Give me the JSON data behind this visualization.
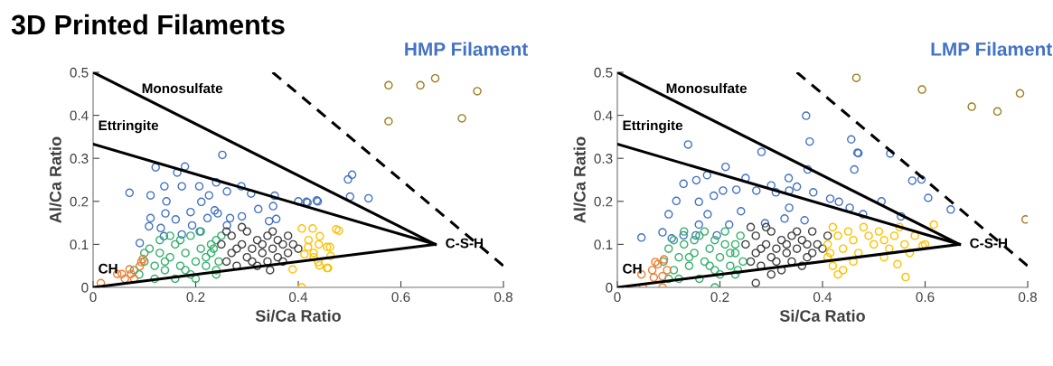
{
  "chart_data": [
    {
      "type": "scatter",
      "title": "HMP Filament",
      "xlabel": "Si/Ca Ratio",
      "ylabel": "Al/Ca Ratio",
      "xlim": [
        0,
        0.8
      ],
      "ylim": [
        0,
        0.5
      ],
      "xticks": [
        0,
        0.2,
        0.4,
        0.6,
        0.8
      ],
      "yticks": [
        0,
        0.1,
        0.2,
        0.3,
        0.4,
        0.5
      ],
      "grid": false,
      "legend": false,
      "marker": "circle",
      "annotations": [
        "3D Printed Filaments",
        {
          "text": "Monosulfate",
          "x": 0.075,
          "y": 0.46
        },
        {
          "text": "Ettringite",
          "x": 0.0,
          "y": 0.333
        },
        {
          "text": "CH",
          "x": 0.0,
          "y": 0.0
        },
        {
          "text": "C-S-H",
          "x": 0.667,
          "y": 0.1
        }
      ],
      "series": [
        {
          "type": "line",
          "marker": "none",
          "color": "#000000",
          "line_style": "solid",
          "x": [
            0,
            0.667
          ],
          "values": [
            0.5,
            0.1
          ]
        },
        {
          "type": "line",
          "marker": "none",
          "color": "#000000",
          "line_style": "solid",
          "x": [
            0,
            0.667
          ],
          "values": [
            0.333,
            0.1
          ]
        },
        {
          "type": "line",
          "marker": "none",
          "color": "#000000",
          "line_style": "solid",
          "x": [
            0,
            0.667
          ],
          "values": [
            0,
            0.1
          ]
        },
        {
          "type": "line",
          "marker": "none",
          "color": "#000000",
          "line_style": "dashed",
          "x": [
            0.35,
            0.8
          ],
          "values": [
            0.5,
            0.05
          ]
        },
        {
          "color": "#4472c4",
          "x": [
            0.252,
            0.122,
            0.179,
            0.071,
            0.112,
            0.139,
            0.173,
            0.207,
            0.164,
            0.24,
            0.289,
            0.261,
            0.308,
            0.354,
            0.4,
            0.416,
            0.436,
            0.143,
            0.211,
            0.226,
            0.19,
            0.141,
            0.112,
            0.109,
            0.132,
            0.161,
            0.223,
            0.237,
            0.267,
            0.29,
            0.322,
            0.351,
            0.343,
            0.357,
            0.261,
            0.173,
            0.208,
            0.138,
            0.091,
            0.193,
            0.243,
            0.505,
            0.497,
            0.501,
            0.537,
            0.438,
            0.418
          ],
          "values": [
            0.308,
            0.279,
            0.281,
            0.22,
            0.214,
            0.235,
            0.235,
            0.235,
            0.267,
            0.244,
            0.235,
            0.223,
            0.218,
            0.213,
            0.2,
            0.199,
            0.202,
            0.2,
            0.199,
            0.214,
            0.175,
            0.172,
            0.161,
            0.142,
            0.138,
            0.158,
            0.161,
            0.179,
            0.161,
            0.165,
            0.182,
            0.189,
            0.154,
            0.159,
            0.144,
            0.123,
            0.13,
            0.119,
            0.103,
            0.144,
            0.172,
            0.262,
            0.251,
            0.211,
            0.207,
            0.2,
            0.197
          ]
        },
        {
          "color": "#33b06b",
          "x": [
            0.09,
            0.1,
            0.12,
            0.13,
            0.14,
            0.15,
            0.16,
            0.17,
            0.18,
            0.19,
            0.2,
            0.21,
            0.22,
            0.23,
            0.24,
            0.245,
            0.25,
            0.11,
            0.13,
            0.15,
            0.17,
            0.19,
            0.21,
            0.23,
            0.12,
            0.16,
            0.2,
            0.24,
            0.14,
            0.18,
            0.22,
            0.235,
            0.24,
            0.08,
            0.1
          ],
          "values": [
            0.03,
            0.06,
            0.05,
            0.08,
            0.04,
            0.07,
            0.1,
            0.05,
            0.08,
            0.03,
            0.06,
            0.09,
            0.05,
            0.08,
            0.11,
            0.06,
            0.12,
            0.09,
            0.11,
            0.12,
            0.11,
            0.12,
            0.13,
            0.1,
            0.02,
            0.02,
            0.02,
            0.03,
            0.06,
            0.04,
            0.07,
            0.09,
            0.04,
            0.04,
            0.08
          ]
        },
        {
          "color": "#404040",
          "x": [
            0.25,
            0.26,
            0.27,
            0.27,
            0.28,
            0.29,
            0.3,
            0.3,
            0.31,
            0.32,
            0.32,
            0.33,
            0.34,
            0.34,
            0.35,
            0.36,
            0.36,
            0.37,
            0.38,
            0.38,
            0.39,
            0.26,
            0.28,
            0.29,
            0.31,
            0.33,
            0.35,
            0.37,
            0.4,
            0.345
          ],
          "values": [
            0.1,
            0.06,
            0.12,
            0.08,
            0.05,
            0.1,
            0.07,
            0.13,
            0.09,
            0.05,
            0.11,
            0.08,
            0.12,
            0.06,
            0.09,
            0.07,
            0.11,
            0.1,
            0.08,
            0.12,
            0.1,
            0.13,
            0.09,
            0.14,
            0.06,
            0.1,
            0.13,
            0.06,
            0.09,
            0.04
          ]
        },
        {
          "color": "#ffc000",
          "x": [
            0.407,
            0.389,
            0.407,
            0.428,
            0.474,
            0.442,
            0.419,
            0.43,
            0.456,
            0.456,
            0.439,
            0.412,
            0.463,
            0.479,
            0.462,
            0.458,
            0.441,
            0.42,
            0.44,
            0.43
          ],
          "values": [
            0.0,
            0.042,
            0.137,
            0.137,
            0.135,
            0.119,
            0.094,
            0.08,
            0.094,
            0.045,
            0.059,
            0.077,
            0.073,
            0.132,
            0.094,
            0.045,
            0.051,
            0.11,
            0.1,
            0.07
          ]
        },
        {
          "color": "#ed7d31",
          "x": [
            0.015,
            0.056,
            0.071,
            0.094,
            0.091,
            0.08,
            0.062,
            0.047,
            0.074,
            0.097
          ],
          "values": [
            0.01,
            0.031,
            0.042,
            0.059,
            0.049,
            0.02,
            0.02,
            0.031,
            0.031,
            0.066
          ]
        },
        {
          "color": "#9c7e1c",
          "x": [
            0.576,
            0.638,
            0.667,
            0.749,
            0.576,
            0.719
          ],
          "values": [
            0.47,
            0.47,
            0.486,
            0.456,
            0.386,
            0.393
          ]
        }
      ]
    },
    {
      "type": "scatter",
      "title": "LMP Filament",
      "xlabel": "Si/Ca Ratio",
      "ylabel": "Al/Ca Ratio",
      "xlim": [
        0,
        0.8
      ],
      "ylim": [
        0,
        0.5
      ],
      "xticks": [
        0,
        0.2,
        0.4,
        0.6,
        0.8
      ],
      "yticks": [
        0,
        0.1,
        0.2,
        0.3,
        0.4,
        0.5
      ],
      "grid": false,
      "legend": false,
      "marker": "circle",
      "annotations": [
        {
          "text": "Monosulfate",
          "x": 0.075,
          "y": 0.46
        },
        {
          "text": "Ettringite",
          "x": 0.0,
          "y": 0.333
        },
        {
          "text": "CH",
          "x": 0.0,
          "y": 0.0
        },
        {
          "text": "C-S-H",
          "x": 0.667,
          "y": 0.1
        }
      ],
      "series": [
        {
          "type": "line",
          "marker": "none",
          "color": "#000000",
          "line_style": "solid",
          "x": [
            0,
            0.667
          ],
          "values": [
            0.5,
            0.1
          ]
        },
        {
          "type": "line",
          "marker": "none",
          "color": "#000000",
          "line_style": "solid",
          "x": [
            0,
            0.667
          ],
          "values": [
            0.333,
            0.1
          ]
        },
        {
          "type": "line",
          "marker": "none",
          "color": "#000000",
          "line_style": "solid",
          "x": [
            0,
            0.667
          ],
          "values": [
            0,
            0.1
          ]
        },
        {
          "type": "line",
          "marker": "none",
          "color": "#000000",
          "line_style": "dashed",
          "x": [
            0.35,
            0.8
          ],
          "values": [
            0.5,
            0.05
          ]
        },
        {
          "color": "#4472c4",
          "x": [
            0.368,
            0.375,
            0.138,
            0.281,
            0.211,
            0.175,
            0.154,
            0.129,
            0.25,
            0.334,
            0.35,
            0.3,
            0.371,
            0.456,
            0.468,
            0.462,
            0.206,
            0.188,
            0.159,
            0.115,
            0.232,
            0.271,
            0.309,
            0.335,
            0.382,
            0.415,
            0.432,
            0.453,
            0.479,
            0.1,
            0.047,
            0.088,
            0.106,
            0.129,
            0.159,
            0.176,
            0.218,
            0.241,
            0.288,
            0.326,
            0.335,
            0.365,
            0.153,
            0.194,
            0.47,
            0.532,
            0.575,
            0.593,
            0.606,
            0.65,
            0.515,
            0.553
          ],
          "values": [
            0.399,
            0.339,
            0.332,
            0.315,
            0.28,
            0.261,
            0.249,
            0.241,
            0.254,
            0.254,
            0.234,
            0.237,
            0.274,
            0.344,
            0.313,
            0.274,
            0.225,
            0.213,
            0.199,
            0.201,
            0.227,
            0.225,
            0.221,
            0.225,
            0.221,
            0.206,
            0.199,
            0.185,
            0.17,
            0.17,
            0.116,
            0.128,
            0.114,
            0.121,
            0.146,
            0.17,
            0.146,
            0.177,
            0.149,
            0.16,
            0.185,
            0.156,
            0.121,
            0.121,
            0.312,
            0.311,
            0.248,
            0.251,
            0.208,
            0.181,
            0.2,
            0.165
          ]
        },
        {
          "color": "#33b06b",
          "x": [
            0.09,
            0.1,
            0.11,
            0.12,
            0.13,
            0.14,
            0.15,
            0.16,
            0.17,
            0.18,
            0.19,
            0.2,
            0.21,
            0.22,
            0.23,
            0.24,
            0.245,
            0.11,
            0.13,
            0.15,
            0.17,
            0.19,
            0.21,
            0.23,
            0.12,
            0.16,
            0.2,
            0.23,
            0.14,
            0.18,
            0.22,
            0.235,
            0.1,
            0.19
          ],
          "values": [
            0.06,
            0.09,
            0.04,
            0.07,
            0.1,
            0.05,
            0.08,
            0.12,
            0.06,
            0.09,
            0.04,
            0.07,
            0.1,
            0.05,
            0.08,
            0.12,
            0.06,
            0.11,
            0.13,
            0.11,
            0.13,
            0.11,
            0.13,
            0.1,
            0.02,
            0.02,
            0.03,
            0.03,
            0.07,
            0.05,
            0.08,
            0.04,
            0.02,
            0.0
          ]
        },
        {
          "color": "#404040",
          "x": [
            0.25,
            0.26,
            0.27,
            0.27,
            0.28,
            0.29,
            0.3,
            0.3,
            0.31,
            0.32,
            0.32,
            0.33,
            0.34,
            0.34,
            0.35,
            0.36,
            0.36,
            0.37,
            0.38,
            0.38,
            0.39,
            0.26,
            0.28,
            0.29,
            0.31,
            0.33,
            0.35,
            0.37,
            0.4,
            0.41,
            0.3,
            0.27
          ],
          "values": [
            0.1,
            0.06,
            0.12,
            0.08,
            0.05,
            0.1,
            0.07,
            0.13,
            0.09,
            0.04,
            0.11,
            0.08,
            0.12,
            0.06,
            0.09,
            0.05,
            0.11,
            0.1,
            0.08,
            0.13,
            0.1,
            0.14,
            0.09,
            0.14,
            0.06,
            0.1,
            0.13,
            0.07,
            0.09,
            0.12,
            0.03,
            0.01
          ]
        },
        {
          "color": "#ffc000",
          "x": [
            0.41,
            0.41,
            0.42,
            0.43,
            0.44,
            0.45,
            0.46,
            0.47,
            0.48,
            0.49,
            0.5,
            0.51,
            0.52,
            0.53,
            0.54,
            0.55,
            0.56,
            0.57,
            0.58,
            0.6,
            0.617,
            0.42,
            0.43,
            0.44,
            0.46,
            0.546,
            0.562,
            0.595,
            0.52,
            0.415
          ],
          "values": [
            0.07,
            0.1,
            0.14,
            0.12,
            0.09,
            0.13,
            0.11,
            0.08,
            0.14,
            0.12,
            0.1,
            0.13,
            0.11,
            0.09,
            0.12,
            0.14,
            0.1,
            0.08,
            0.12,
            0.1,
            0.146,
            0.05,
            0.03,
            0.04,
            0.06,
            0.054,
            0.024,
            0.097,
            0.07,
            0.08
          ]
        },
        {
          "color": "#ed7d31",
          "x": [
            0.05,
            0.088,
            0.071,
            0.088,
            0.068,
            0.079,
            0.091,
            0.074,
            0.047,
            0.097
          ],
          "values": [
            0.0,
            0.0,
            0.023,
            0.026,
            0.04,
            0.054,
            0.065,
            0.059,
            0.03,
            0.04
          ]
        },
        {
          "color": "#9c7e1c",
          "x": [
            0.466,
            0.594,
            0.691,
            0.741,
            0.785,
            0.796
          ],
          "values": [
            0.487,
            0.46,
            0.42,
            0.409,
            0.451,
            0.158
          ]
        }
      ]
    }
  ]
}
